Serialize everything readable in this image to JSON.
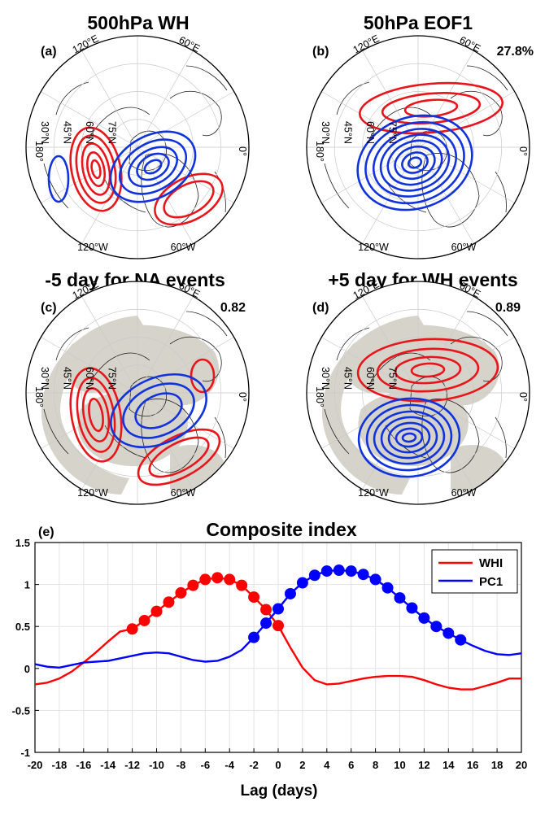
{
  "panels": [
    {
      "label": "(a)",
      "title": "500hPa WH",
      "value": "",
      "shading": false,
      "red_contours": [
        {
          "center": [
            118,
            208
          ],
          "rings": [
            [
              30,
              52,
              -12
            ],
            [
              23,
              42,
              -12
            ],
            [
              16,
              32,
              -12
            ],
            [
              10,
              21,
              -12
            ],
            [
              5,
              11,
              -12
            ]
          ]
        },
        {
          "center": [
            232,
            245
          ],
          "rings": [
            [
              45,
              26,
              -28
            ],
            [
              33,
              18,
              -28
            ]
          ]
        }
      ],
      "blue_contours": [
        {
          "center": [
            188,
            205
          ],
          "rings": [
            [
              56,
              38,
              -30
            ],
            [
              44,
              29,
              -30
            ],
            [
              32,
              21,
              -30
            ],
            [
              21,
              14,
              -30
            ],
            [
              11,
              7,
              -30
            ]
          ]
        },
        {
          "center": [
            72,
            220
          ],
          "rings": [
            [
              12,
              28,
              0
            ]
          ]
        }
      ]
    },
    {
      "label": "(b)",
      "title": "50hPa EOF1",
      "value": "27.8%",
      "shading": false,
      "red_contours": [
        {
          "center": [
            530,
            133
          ],
          "rings": [
            [
              88,
              30,
              -5
            ],
            [
              60,
              18,
              -5
            ],
            [
              32,
              10,
              -5
            ]
          ]
        }
      ],
      "blue_contours": [
        {
          "center": [
            510,
            200
          ],
          "rings": [
            [
              72,
              56,
              -20
            ],
            [
              62,
              48,
              -20
            ],
            [
              52,
              40,
              -20
            ],
            [
              43,
              33,
              -20
            ],
            [
              34,
              26,
              -20
            ],
            [
              25,
              19,
              -20
            ],
            [
              16,
              12,
              -20
            ],
            [
              8,
              6,
              -20
            ]
          ]
        }
      ]
    },
    {
      "label": "(c)",
      "title": "-5 day for NA events",
      "value": "0.82",
      "shading": true,
      "red_contours": [
        {
          "center": [
            118,
            510
          ],
          "rings": [
            [
              30,
              58,
              -10
            ],
            [
              22,
              46,
              -10
            ],
            [
              15,
              33,
              -10
            ],
            [
              8,
              20,
              -10
            ]
          ]
        },
        {
          "center": [
            220,
            562
          ],
          "rings": [
            [
              55,
              25,
              -28
            ],
            [
              40,
              17,
              -28
            ]
          ]
        },
        {
          "center": [
            249,
            462
          ],
          "rings": [
            [
              14,
              20,
              0
            ]
          ]
        }
      ],
      "blue_contours": [
        {
          "center": [
            195,
            505
          ],
          "rings": [
            [
              62,
              40,
              -25
            ],
            [
              46,
              30,
              -25
            ],
            [
              30,
              19,
              -25
            ]
          ]
        }
      ]
    },
    {
      "label": "(d)",
      "title": "+5 day for WH events",
      "value": "0.89",
      "shading": true,
      "red_contours": [
        {
          "center": [
            526,
            455
          ],
          "rings": [
            [
              86,
              38,
              -3
            ],
            [
              62,
              26,
              -3
            ],
            [
              40,
              16,
              -3
            ],
            [
              20,
              8,
              -3
            ]
          ]
        }
      ],
      "blue_contours": [
        {
          "center": [
            503,
            538
          ],
          "rings": [
            [
              62,
              48,
              -5
            ],
            [
              52,
              40,
              -5
            ],
            [
              43,
              32,
              -5
            ],
            [
              34,
              25,
              -5
            ],
            [
              25,
              18,
              -5
            ],
            [
              16,
              11,
              -5
            ],
            [
              8,
              5,
              -5
            ]
          ]
        }
      ]
    }
  ],
  "map_labels": {
    "lat": [
      "30°N",
      "45°N",
      "60°N",
      "75°N"
    ],
    "lon": [
      "120°E",
      "60°E",
      "180°",
      "0°",
      "120°W",
      "60°W"
    ]
  },
  "chart_data": {
    "type": "line",
    "label": "(e)",
    "title": "Composite index",
    "xlabel": "Lag (days)",
    "ylabel": "",
    "xlim": [
      -20,
      20
    ],
    "ylim": [
      -1,
      1.5
    ],
    "x_ticks": [
      -20,
      -18,
      -16,
      -14,
      -12,
      -10,
      -8,
      -6,
      -4,
      -2,
      0,
      2,
      4,
      6,
      8,
      10,
      12,
      14,
      16,
      18,
      20
    ],
    "y_ticks": [
      -1,
      -0.5,
      0,
      0.5,
      1,
      1.5
    ],
    "y_tick_labels": [
      "-1",
      "-0.5",
      "0",
      "0.5",
      "1",
      "1.5"
    ],
    "grid": true,
    "legend_position": "top-right",
    "series": [
      {
        "name": "WHI",
        "color": "#ff0000",
        "x": [
          -20,
          -19,
          -18,
          -17,
          -16,
          -15,
          -14,
          -13,
          -12,
          -11,
          -10,
          -9,
          -8,
          -7,
          -6,
          -5,
          -4,
          -3,
          -2,
          -1,
          0,
          1,
          2,
          3,
          4,
          5,
          6,
          7,
          8,
          9,
          10,
          11,
          12,
          13,
          14,
          15,
          16,
          17,
          18,
          19,
          20
        ],
        "y": [
          -0.19,
          -0.17,
          -0.12,
          -0.04,
          0.07,
          0.19,
          0.32,
          0.44,
          0.47,
          0.57,
          0.68,
          0.79,
          0.9,
          0.99,
          1.06,
          1.08,
          1.06,
          0.99,
          0.85,
          0.7,
          0.51,
          0.25,
          0.01,
          -0.14,
          -0.19,
          -0.18,
          -0.15,
          -0.12,
          -0.1,
          -0.09,
          -0.09,
          -0.1,
          -0.14,
          -0.19,
          -0.23,
          -0.25,
          -0.25,
          -0.21,
          -0.17,
          -0.12,
          -0.12
        ],
        "marker_range": [
          -12,
          0
        ]
      },
      {
        "name": "PC1",
        "color": "#0000ff",
        "x": [
          -20,
          -19,
          -18,
          -17,
          -16,
          -15,
          -14,
          -13,
          -12,
          -11,
          -10,
          -9,
          -8,
          -7,
          -6,
          -5,
          -4,
          -3,
          -2,
          -1,
          0,
          1,
          2,
          3,
          4,
          5,
          6,
          7,
          8,
          9,
          10,
          11,
          12,
          13,
          14,
          15,
          16,
          17,
          18,
          19,
          20
        ],
        "y": [
          0.05,
          0.02,
          0.01,
          0.04,
          0.07,
          0.08,
          0.09,
          0.12,
          0.15,
          0.18,
          0.19,
          0.18,
          0.14,
          0.1,
          0.08,
          0.09,
          0.14,
          0.22,
          0.37,
          0.54,
          0.71,
          0.89,
          1.02,
          1.11,
          1.16,
          1.17,
          1.16,
          1.12,
          1.06,
          0.96,
          0.84,
          0.72,
          0.6,
          0.5,
          0.42,
          0.34,
          0.27,
          0.21,
          0.17,
          0.16,
          0.18
        ],
        "marker_range": [
          -2,
          15
        ]
      }
    ]
  }
}
